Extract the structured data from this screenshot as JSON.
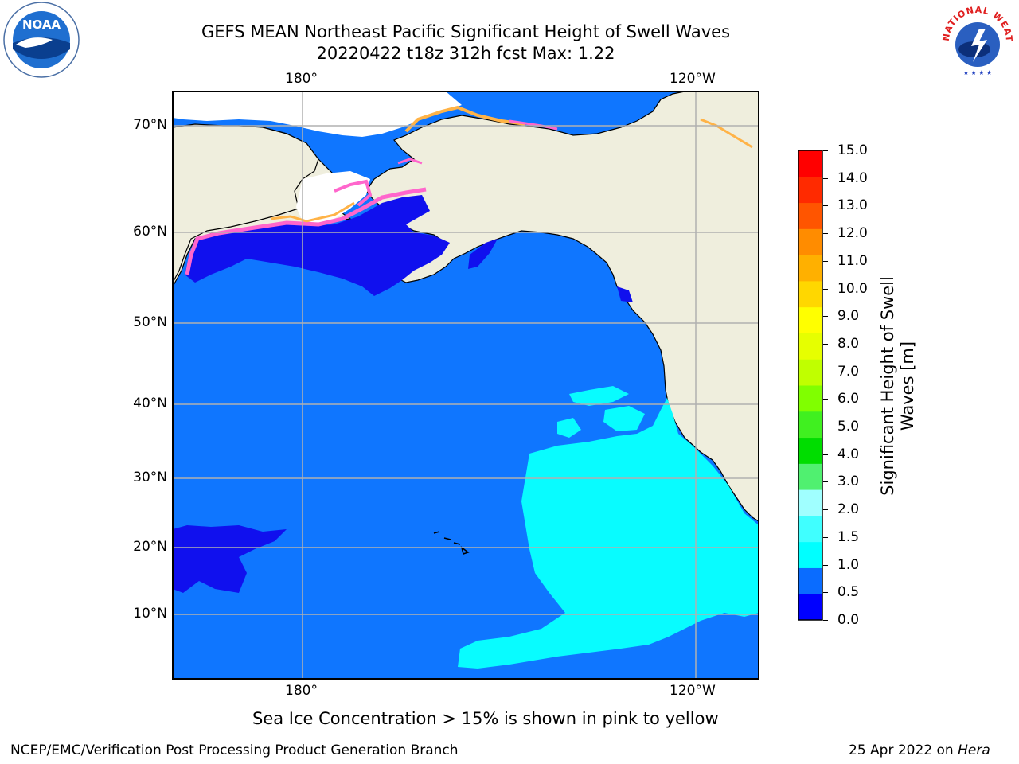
{
  "title": {
    "line1": "GEFS MEAN Northeast Pacific Significant Height of Swell Waves",
    "line2": "20220422 t18z 312h fcst   Max: 1.22"
  },
  "map": {
    "lon_labels_top": [
      "180°",
      "120°W"
    ],
    "lon_labels_bottom": [
      "180°",
      "120°W"
    ],
    "lat_labels": [
      "70°N",
      "60°N",
      "50°N",
      "40°N",
      "30°N",
      "20°N",
      "10°N"
    ],
    "colors": {
      "land": "#efeedd",
      "ocean_main": "#0f76ff",
      "ocean_low": "#1010ee",
      "swell_high": "#08fcff",
      "ice_pink": "#ff66cc",
      "ice_orange": "#ffb347",
      "grid": "#b0b0b0"
    }
  },
  "colorbar": {
    "label": "Significant Height of Swell Waves [m]",
    "ticks": [
      "15.0",
      "14.0",
      "13.0",
      "12.0",
      "11.0",
      "10.0",
      "9.0",
      "8.0",
      "7.0",
      "6.0",
      "5.0",
      "4.0",
      "3.0",
      "2.0",
      "1.5",
      "1.0",
      "0.5",
      "0.0"
    ],
    "bins_bottom_to_top": [
      "#0000ff",
      "#0a6cff",
      "#00ffff",
      "#40ffff",
      "#a0ffff",
      "#50f070",
      "#00dd00",
      "#40f020",
      "#80ff00",
      "#c0ff00",
      "#e6ff00",
      "#ffff00",
      "#ffd700",
      "#ffb000",
      "#ff8c00",
      "#ff5500",
      "#ff2a00",
      "#ff0000"
    ]
  },
  "note": "Sea Ice Concentration > 15% is shown in pink to yellow",
  "footer": {
    "left": "NCEP/EMC/Verification Post Processing Product Generation Branch",
    "right_date": "25 Apr 2022 on ",
    "right_host": "Hera"
  },
  "logos": {
    "left_text": "NOAA",
    "right_text": "NATIONAL WEATHER SERVICE"
  }
}
